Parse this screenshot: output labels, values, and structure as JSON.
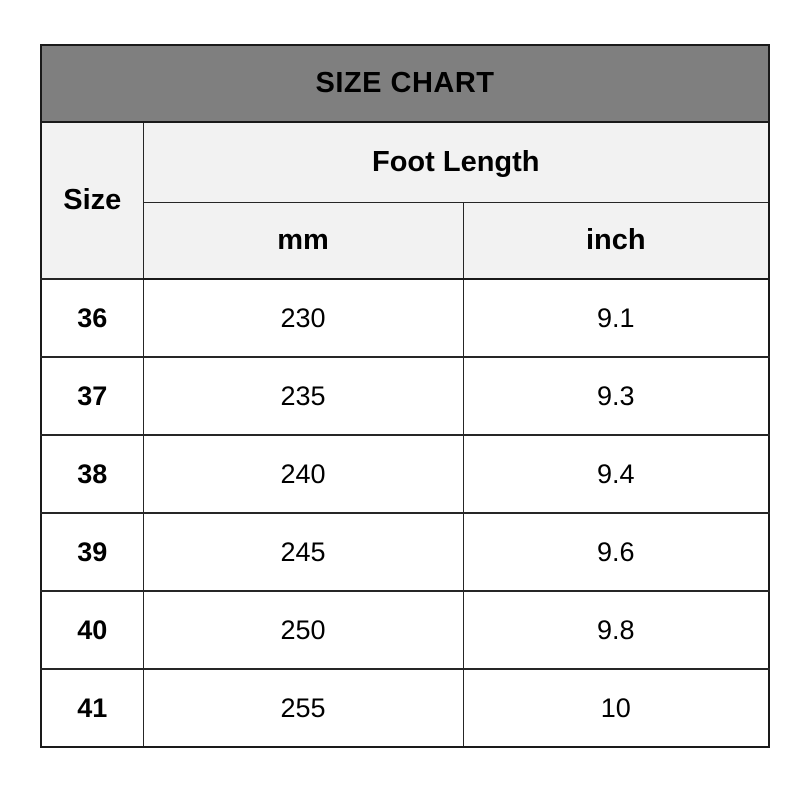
{
  "page": {
    "background": "#ffffff"
  },
  "table": {
    "title": "SIZE CHART",
    "header": {
      "size_label": "Size",
      "foot_length_label": "Foot Length",
      "mm_label": "mm",
      "inch_label": "inch"
    },
    "rows": [
      {
        "size": "36",
        "mm": "230",
        "inch": "9.1"
      },
      {
        "size": "37",
        "mm": "235",
        "inch": "9.3"
      },
      {
        "size": "38",
        "mm": "240",
        "inch": "9.4"
      },
      {
        "size": "39",
        "mm": "245",
        "inch": "9.6"
      },
      {
        "size": "40",
        "mm": "250",
        "inch": "9.8"
      },
      {
        "size": "41",
        "mm": "255",
        "inch": "10"
      }
    ],
    "colors": {
      "title_background": "#7f7f7f",
      "header_background": "#f2f2f2",
      "row_background": "#ffffff",
      "border": "#262626",
      "text": "#000000"
    }
  },
  "chart_data": {
    "type": "table",
    "title": "SIZE CHART",
    "columns": [
      "Size",
      "Foot Length (mm)",
      "Foot Length (inch)"
    ],
    "rows": [
      [
        "36",
        "230",
        "9.1"
      ],
      [
        "37",
        "235",
        "9.3"
      ],
      [
        "38",
        "240",
        "9.4"
      ],
      [
        "39",
        "245",
        "9.6"
      ],
      [
        "40",
        "250",
        "9.8"
      ],
      [
        "41",
        "255",
        "10"
      ]
    ]
  }
}
